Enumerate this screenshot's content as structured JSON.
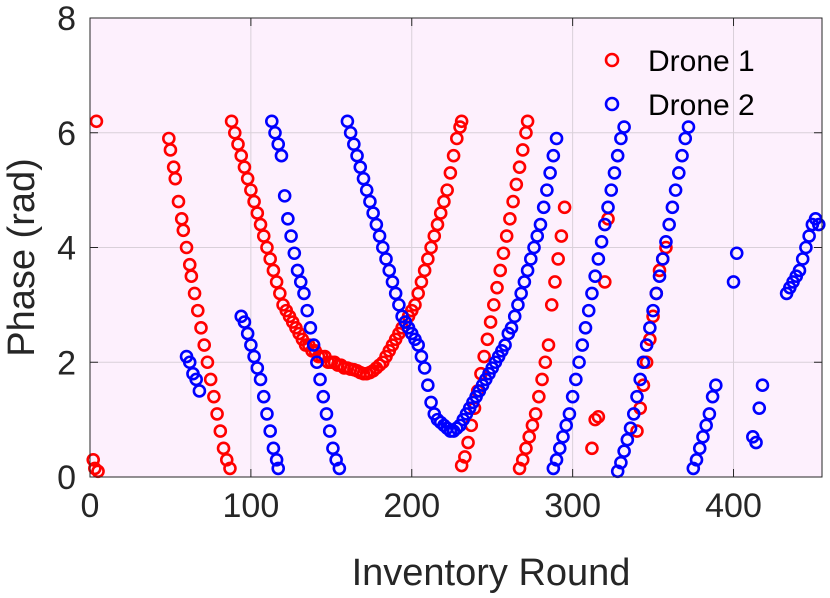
{
  "chart_data": {
    "type": "scatter",
    "title": "",
    "xlabel": "Inventory Round",
    "ylabel": "Phase (rad)",
    "xlim": [
      0,
      455
    ],
    "ylim": [
      0,
      8
    ],
    "xticks": [
      0,
      100,
      200,
      300,
      400
    ],
    "yticks": [
      0,
      2,
      4,
      6,
      8
    ],
    "xtick_labels": [
      "0",
      "100",
      "200",
      "300",
      "400"
    ],
    "ytick_labels": [
      "0",
      "2",
      "4",
      "6",
      "8"
    ],
    "grid": true,
    "legend_position": "top-right",
    "marker": "open-circle",
    "plot_background": "#fdf0fd",
    "series": [
      {
        "name": "Drone 1",
        "color": "#ff0000",
        "points": [
          [
            2,
            0.3
          ],
          [
            3,
            0.15
          ],
          [
            4,
            6.2
          ],
          [
            5,
            0.1
          ],
          [
            49,
            5.9
          ],
          [
            50,
            5.7
          ],
          [
            52,
            5.4
          ],
          [
            53,
            5.2
          ],
          [
            55,
            4.8
          ],
          [
            57,
            4.5
          ],
          [
            58,
            4.3
          ],
          [
            60,
            4.0
          ],
          [
            62,
            3.7
          ],
          [
            63,
            3.5
          ],
          [
            65,
            3.2
          ],
          [
            67,
            2.9
          ],
          [
            69,
            2.6
          ],
          [
            71,
            2.3
          ],
          [
            73,
            2.0
          ],
          [
            75,
            1.7
          ],
          [
            77,
            1.4
          ],
          [
            79,
            1.1
          ],
          [
            81,
            0.8
          ],
          [
            83,
            0.5
          ],
          [
            85,
            0.3
          ],
          [
            87,
            0.15
          ],
          [
            88,
            6.2
          ],
          [
            90,
            6.0
          ],
          [
            92,
            5.8
          ],
          [
            94,
            5.6
          ],
          [
            96,
            5.4
          ],
          [
            98,
            5.2
          ],
          [
            100,
            5.0
          ],
          [
            102,
            4.8
          ],
          [
            104,
            4.6
          ],
          [
            106,
            4.4
          ],
          [
            108,
            4.2
          ],
          [
            110,
            4.0
          ],
          [
            112,
            3.8
          ],
          [
            114,
            3.6
          ],
          [
            116,
            3.4
          ],
          [
            118,
            3.2
          ],
          [
            120,
            3.0
          ],
          [
            122,
            2.9
          ],
          [
            124,
            2.8
          ],
          [
            126,
            2.7
          ],
          [
            128,
            2.6
          ],
          [
            130,
            2.5
          ],
          [
            132,
            2.4
          ],
          [
            134,
            2.3
          ],
          [
            136,
            2.3
          ],
          [
            138,
            2.2
          ],
          [
            140,
            2.2
          ],
          [
            142,
            2.1
          ],
          [
            144,
            2.1
          ],
          [
            146,
            2.1
          ],
          [
            148,
            2.0
          ],
          [
            150,
            2.0
          ],
          [
            152,
            2.0
          ],
          [
            154,
            1.95
          ],
          [
            156,
            1.95
          ],
          [
            158,
            1.9
          ],
          [
            160,
            1.9
          ],
          [
            162,
            1.88
          ],
          [
            164,
            1.87
          ],
          [
            166,
            1.85
          ],
          [
            168,
            1.82
          ],
          [
            170,
            1.8
          ],
          [
            172,
            1.8
          ],
          [
            174,
            1.82
          ],
          [
            176,
            1.85
          ],
          [
            178,
            1.9
          ],
          [
            180,
            1.95
          ],
          [
            182,
            2.0
          ],
          [
            184,
            2.1
          ],
          [
            186,
            2.2
          ],
          [
            188,
            2.3
          ],
          [
            190,
            2.4
          ],
          [
            192,
            2.5
          ],
          [
            194,
            2.6
          ],
          [
            196,
            2.7
          ],
          [
            198,
            2.8
          ],
          [
            200,
            2.9
          ],
          [
            202,
            3.0
          ],
          [
            204,
            3.2
          ],
          [
            206,
            3.4
          ],
          [
            208,
            3.6
          ],
          [
            210,
            3.8
          ],
          [
            212,
            4.0
          ],
          [
            214,
            4.2
          ],
          [
            216,
            4.4
          ],
          [
            218,
            4.6
          ],
          [
            220,
            4.8
          ],
          [
            222,
            5.0
          ],
          [
            224,
            5.3
          ],
          [
            226,
            5.6
          ],
          [
            228,
            5.9
          ],
          [
            230,
            6.1
          ],
          [
            231,
            6.2
          ],
          [
            231,
            0.2
          ],
          [
            233,
            0.35
          ],
          [
            235,
            0.6
          ],
          [
            237,
            0.9
          ],
          [
            239,
            1.2
          ],
          [
            241,
            1.5
          ],
          [
            243,
            1.8
          ],
          [
            245,
            2.1
          ],
          [
            247,
            2.4
          ],
          [
            249,
            2.7
          ],
          [
            251,
            3.0
          ],
          [
            253,
            3.3
          ],
          [
            255,
            3.6
          ],
          [
            257,
            3.9
          ],
          [
            259,
            4.2
          ],
          [
            261,
            4.5
          ],
          [
            263,
            4.8
          ],
          [
            265,
            5.1
          ],
          [
            267,
            5.4
          ],
          [
            269,
            5.7
          ],
          [
            271,
            6.0
          ],
          [
            272,
            6.2
          ],
          [
            267,
            0.15
          ],
          [
            269,
            0.3
          ],
          [
            271,
            0.5
          ],
          [
            273,
            0.7
          ],
          [
            275,
            0.9
          ],
          [
            277,
            1.1
          ],
          [
            279,
            1.4
          ],
          [
            281,
            1.7
          ],
          [
            283,
            2.0
          ],
          [
            285,
            2.3
          ],
          [
            287,
            3.0
          ],
          [
            289,
            3.4
          ],
          [
            291,
            3.8
          ],
          [
            293,
            4.2
          ],
          [
            295,
            4.7
          ],
          [
            312,
            0.5
          ],
          [
            314,
            1.0
          ],
          [
            316,
            1.05
          ],
          [
            320,
            3.4
          ],
          [
            322,
            4.5
          ],
          [
            340,
            0.8
          ],
          [
            342,
            1.2
          ],
          [
            344,
            1.6
          ],
          [
            346,
            2.0
          ],
          [
            348,
            2.4
          ],
          [
            350,
            2.8
          ],
          [
            352,
            3.2
          ],
          [
            354,
            3.6
          ],
          [
            356,
            3.8
          ],
          [
            358,
            4.0
          ]
        ]
      },
      {
        "name": "Drone 2",
        "color": "#0000ff",
        "points": [
          [
            60,
            2.1
          ],
          [
            62,
            2.0
          ],
          [
            64,
            1.8
          ],
          [
            66,
            1.7
          ],
          [
            68,
            1.5
          ],
          [
            94,
            2.8
          ],
          [
            96,
            2.7
          ],
          [
            98,
            2.5
          ],
          [
            100,
            2.3
          ],
          [
            102,
            2.1
          ],
          [
            104,
            1.9
          ],
          [
            106,
            1.7
          ],
          [
            108,
            1.4
          ],
          [
            110,
            1.1
          ],
          [
            112,
            0.8
          ],
          [
            114,
            0.5
          ],
          [
            116,
            0.3
          ],
          [
            117,
            0.15
          ],
          [
            113,
            6.2
          ],
          [
            115,
            6.0
          ],
          [
            117,
            5.8
          ],
          [
            119,
            5.6
          ],
          [
            121,
            4.9
          ],
          [
            123,
            4.5
          ],
          [
            125,
            4.2
          ],
          [
            127,
            3.9
          ],
          [
            129,
            3.6
          ],
          [
            131,
            3.4
          ],
          [
            133,
            3.2
          ],
          [
            135,
            2.9
          ],
          [
            137,
            2.6
          ],
          [
            139,
            2.3
          ],
          [
            141,
            2.0
          ],
          [
            143,
            1.7
          ],
          [
            145,
            1.4
          ],
          [
            147,
            1.1
          ],
          [
            149,
            0.8
          ],
          [
            151,
            0.5
          ],
          [
            153,
            0.3
          ],
          [
            155,
            0.15
          ],
          [
            160,
            6.2
          ],
          [
            162,
            6.0
          ],
          [
            164,
            5.8
          ],
          [
            166,
            5.6
          ],
          [
            168,
            5.4
          ],
          [
            170,
            5.2
          ],
          [
            172,
            5.0
          ],
          [
            174,
            4.8
          ],
          [
            176,
            4.6
          ],
          [
            178,
            4.4
          ],
          [
            180,
            4.2
          ],
          [
            182,
            4.0
          ],
          [
            184,
            3.8
          ],
          [
            186,
            3.6
          ],
          [
            188,
            3.4
          ],
          [
            190,
            3.2
          ],
          [
            192,
            3.0
          ],
          [
            194,
            2.8
          ],
          [
            196,
            2.7
          ],
          [
            198,
            2.6
          ],
          [
            200,
            2.5
          ],
          [
            202,
            2.4
          ],
          [
            204,
            2.3
          ],
          [
            206,
            2.1
          ],
          [
            208,
            1.9
          ],
          [
            210,
            1.6
          ],
          [
            212,
            1.3
          ],
          [
            214,
            1.1
          ],
          [
            216,
            1.0
          ],
          [
            218,
            0.95
          ],
          [
            220,
            0.9
          ],
          [
            222,
            0.85
          ],
          [
            224,
            0.8
          ],
          [
            226,
            0.8
          ],
          [
            228,
            0.85
          ],
          [
            230,
            0.9
          ],
          [
            232,
            1.0
          ],
          [
            234,
            1.1
          ],
          [
            236,
            1.2
          ],
          [
            238,
            1.3
          ],
          [
            240,
            1.4
          ],
          [
            242,
            1.5
          ],
          [
            244,
            1.6
          ],
          [
            246,
            1.7
          ],
          [
            248,
            1.8
          ],
          [
            250,
            1.9
          ],
          [
            252,
            2.0
          ],
          [
            254,
            2.1
          ],
          [
            256,
            2.2
          ],
          [
            258,
            2.3
          ],
          [
            260,
            2.5
          ],
          [
            262,
            2.6
          ],
          [
            264,
            2.8
          ],
          [
            266,
            3.0
          ],
          [
            268,
            3.2
          ],
          [
            270,
            3.4
          ],
          [
            272,
            3.6
          ],
          [
            274,
            3.8
          ],
          [
            276,
            4.0
          ],
          [
            278,
            4.2
          ],
          [
            280,
            4.4
          ],
          [
            282,
            4.7
          ],
          [
            284,
            5.0
          ],
          [
            286,
            5.3
          ],
          [
            288,
            5.6
          ],
          [
            290,
            5.9
          ],
          [
            288,
            0.15
          ],
          [
            290,
            0.3
          ],
          [
            292,
            0.5
          ],
          [
            294,
            0.7
          ],
          [
            296,
            0.9
          ],
          [
            298,
            1.1
          ],
          [
            300,
            1.4
          ],
          [
            302,
            1.7
          ],
          [
            304,
            2.0
          ],
          [
            306,
            2.3
          ],
          [
            308,
            2.6
          ],
          [
            310,
            2.9
          ],
          [
            312,
            3.2
          ],
          [
            314,
            3.5
          ],
          [
            316,
            3.8
          ],
          [
            318,
            4.1
          ],
          [
            320,
            4.4
          ],
          [
            322,
            4.7
          ],
          [
            324,
            5.0
          ],
          [
            326,
            5.3
          ],
          [
            328,
            5.6
          ],
          [
            330,
            5.9
          ],
          [
            332,
            6.1
          ],
          [
            328,
            0.1
          ],
          [
            330,
            0.25
          ],
          [
            332,
            0.45
          ],
          [
            334,
            0.65
          ],
          [
            336,
            0.85
          ],
          [
            338,
            1.1
          ],
          [
            340,
            1.4
          ],
          [
            342,
            1.7
          ],
          [
            344,
            2.0
          ],
          [
            346,
            2.3
          ],
          [
            348,
            2.6
          ],
          [
            350,
            2.9
          ],
          [
            352,
            3.2
          ],
          [
            354,
            3.5
          ],
          [
            356,
            3.8
          ],
          [
            358,
            4.1
          ],
          [
            360,
            4.4
          ],
          [
            362,
            4.7
          ],
          [
            364,
            5.0
          ],
          [
            366,
            5.3
          ],
          [
            368,
            5.6
          ],
          [
            370,
            5.9
          ],
          [
            372,
            6.1
          ],
          [
            375,
            0.15
          ],
          [
            377,
            0.3
          ],
          [
            379,
            0.5
          ],
          [
            381,
            0.7
          ],
          [
            383,
            0.9
          ],
          [
            385,
            1.1
          ],
          [
            387,
            1.4
          ],
          [
            389,
            1.6
          ],
          [
            400,
            3.4
          ],
          [
            402,
            3.9
          ],
          [
            412,
            0.7
          ],
          [
            414,
            0.6
          ],
          [
            416,
            1.2
          ],
          [
            418,
            1.6
          ],
          [
            433,
            3.2
          ],
          [
            435,
            3.3
          ],
          [
            437,
            3.4
          ],
          [
            439,
            3.5
          ],
          [
            441,
            3.6
          ],
          [
            443,
            3.8
          ],
          [
            445,
            4.0
          ],
          [
            447,
            4.2
          ],
          [
            449,
            4.4
          ],
          [
            451,
            4.5
          ],
          [
            453,
            4.4
          ]
        ]
      }
    ]
  }
}
